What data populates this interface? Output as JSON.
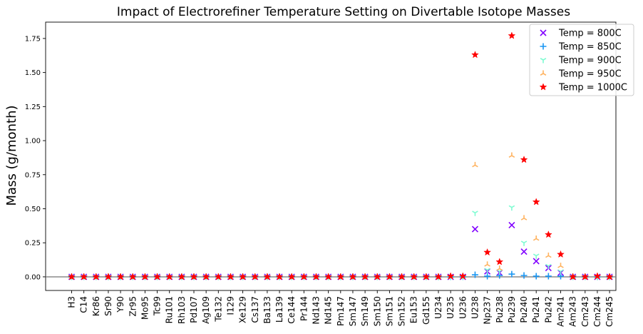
{
  "chart_data": {
    "type": "scatter",
    "title": "Impact of Electrorefiner Temperature Setting on Divertable Isotope Masses",
    "xlabel": "",
    "ylabel": "Mass (g/month)",
    "ylim": [
      -0.1,
      1.87
    ],
    "yticks": [
      "0.00",
      "0.25",
      "0.50",
      "0.75",
      "1.00",
      "1.25",
      "1.50",
      "1.75"
    ],
    "grid": false,
    "legend_position": "top-right",
    "categories": [
      "H3",
      "C14",
      "Kr86",
      "Sr90",
      "Y90",
      "Zr95",
      "Mo95",
      "Tc99",
      "Ru101",
      "Rh103",
      "Pd107",
      "Ag109",
      "Te132",
      "I129",
      "Xe129",
      "Cs137",
      "Ba133",
      "La139",
      "Ce144",
      "Pr144",
      "Nd143",
      "Nd145",
      "Pm147",
      "Sm147",
      "Sm149",
      "Sm150",
      "Sm151",
      "Sm152",
      "Eu153",
      "Gd155",
      "U234",
      "U235",
      "U236",
      "U238",
      "Np237",
      "Pu238",
      "Pu239",
      "Pu240",
      "Pu241",
      "Pu242",
      "Am241",
      "Am243",
      "Cm243",
      "Cm244",
      "Cm245"
    ],
    "series": [
      {
        "name": "Temp = 800C",
        "marker": "x",
        "color": "#8000ff",
        "values": [
          0,
          0,
          0,
          0,
          0,
          0,
          0,
          0,
          0,
          0,
          0,
          0,
          0,
          0,
          0,
          0,
          0,
          0,
          0,
          0,
          0,
          0,
          0,
          0,
          0,
          0,
          0,
          0,
          0,
          0,
          0,
          0,
          0,
          0.35,
          0.04,
          0.03,
          0.38,
          0.185,
          0.115,
          0.065,
          0.03,
          0,
          0,
          0,
          0
        ]
      },
      {
        "name": "Temp = 850C",
        "marker": "+",
        "color": "#1996f3",
        "values": [
          0,
          0,
          0,
          0,
          0,
          0,
          0,
          0,
          0,
          0,
          0,
          0,
          0,
          0,
          0,
          0,
          0,
          0,
          0,
          0,
          0,
          0,
          0,
          0,
          0,
          0,
          0,
          0,
          0,
          0,
          0,
          0,
          0,
          0.015,
          0.005,
          0.01,
          0.02,
          0.01,
          0.005,
          0.005,
          0.005,
          0,
          0,
          0,
          0
        ]
      },
      {
        "name": "Temp = 900C",
        "marker": "tri_down",
        "color": "#7ffcd2",
        "values": [
          0,
          0,
          0,
          0,
          0,
          0,
          0,
          0,
          0,
          0,
          0,
          0,
          0,
          0,
          0,
          0,
          0,
          0,
          0,
          0,
          0,
          0,
          0,
          0,
          0,
          0,
          0,
          0,
          0,
          0,
          0,
          0,
          0,
          0.47,
          0.05,
          0.04,
          0.51,
          0.25,
          0.155,
          0.08,
          0.04,
          0,
          0,
          0,
          0
        ]
      },
      {
        "name": "Temp = 950C",
        "marker": "tri_up",
        "color": "#ffb360",
        "values": [
          0,
          0,
          0,
          0,
          0,
          0,
          0,
          0,
          0,
          0,
          0,
          0,
          0,
          0,
          0,
          0,
          0,
          0,
          0,
          0,
          0,
          0,
          0,
          0,
          0,
          0,
          0,
          0,
          0,
          0,
          0,
          0,
          0,
          0.82,
          0.09,
          0.06,
          0.89,
          0.43,
          0.28,
          0.155,
          0.08,
          0,
          0,
          0,
          0
        ]
      },
      {
        "name": "Temp = 1000C",
        "marker": "star",
        "color": "#ff0000",
        "values": [
          0,
          0,
          0,
          0,
          0,
          0,
          0,
          0,
          0,
          0,
          0,
          0,
          0,
          0,
          0,
          0,
          0,
          0,
          0,
          0,
          0,
          0,
          0,
          0,
          0,
          0,
          0,
          0,
          0,
          0,
          0,
          0.005,
          0.005,
          1.63,
          0.18,
          0.11,
          1.77,
          0.86,
          0.55,
          0.31,
          0.165,
          0,
          0,
          0.005,
          0
        ]
      }
    ]
  }
}
